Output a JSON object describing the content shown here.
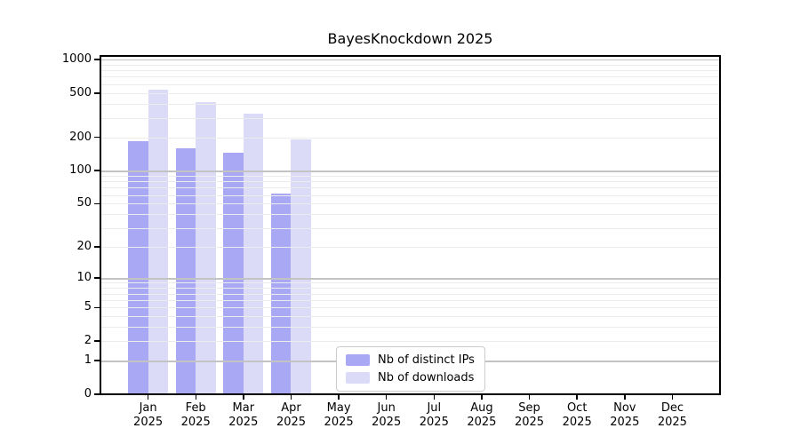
{
  "chart_data": {
    "type": "bar",
    "title": "BayesKnockdown 2025",
    "categories": [
      "Jan",
      "Feb",
      "Mar",
      "Apr",
      "May",
      "Jun",
      "Jul",
      "Aug",
      "Sep",
      "Oct",
      "Nov",
      "Dec"
    ],
    "year": "2025",
    "series": [
      {
        "name": "Nb of distinct IPs",
        "color": "#a8a8f5",
        "values": [
          186,
          160,
          146,
          62,
          null,
          null,
          null,
          null,
          null,
          null,
          null,
          null
        ]
      },
      {
        "name": "Nb of downloads",
        "color": "#dbdbf8",
        "values": [
          538,
          414,
          327,
          192,
          null,
          null,
          null,
          null,
          null,
          null,
          null,
          null
        ]
      }
    ],
    "yscale": "log1p",
    "y_ticks": [
      0,
      1,
      2,
      5,
      10,
      20,
      50,
      100,
      200,
      500,
      1000
    ],
    "ylim": [
      0,
      1075
    ],
    "grid": {
      "orientation": "horizontal",
      "major_color": "#c3c3c3",
      "minor_color": "#ececec"
    },
    "legend_position": "inside-bottom-center",
    "axis_color": "#000000"
  }
}
